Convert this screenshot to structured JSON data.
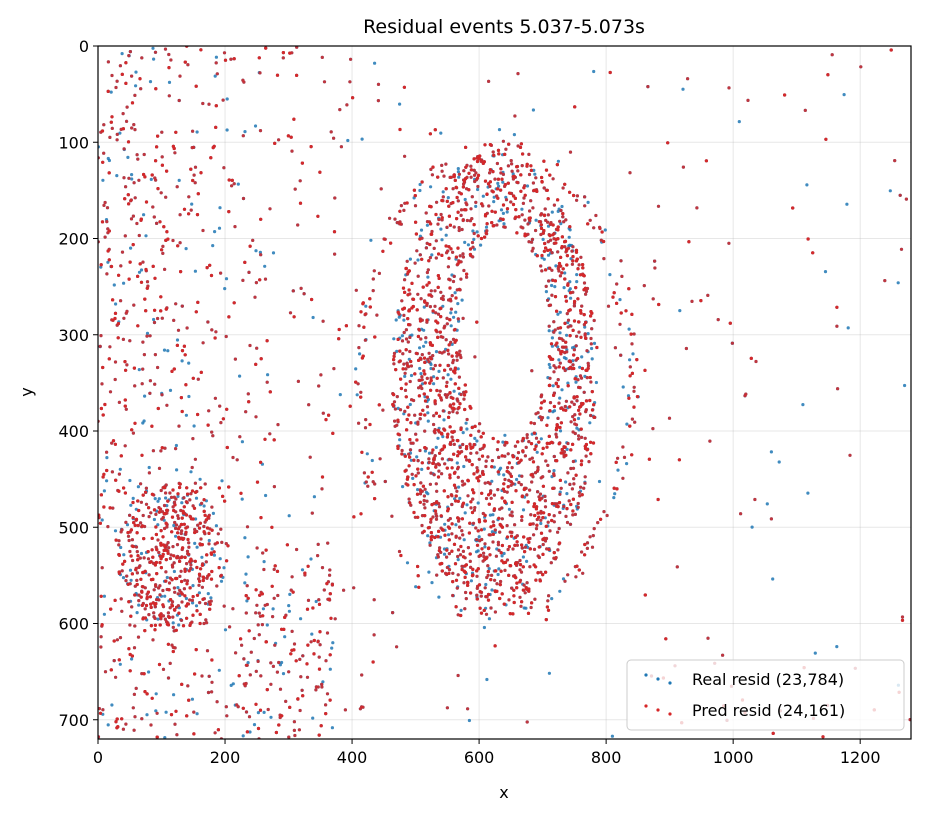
{
  "chart_data": {
    "type": "scatter",
    "title": "Residual events 5.037-5.073s",
    "xlabel": "x",
    "ylabel": "y",
    "xlim": [
      0,
      1280
    ],
    "ylim": [
      720,
      0
    ],
    "y_inverted": true,
    "x_ticks": [
      0,
      200,
      400,
      600,
      800,
      1000,
      1200
    ],
    "y_ticks": [
      0,
      100,
      200,
      300,
      400,
      500,
      600,
      700
    ],
    "grid": true,
    "legend_position": "lower-right",
    "series": [
      {
        "name": "Real resid (23,784)",
        "color": "#1f77b4",
        "count": 23784
      },
      {
        "name": "Pred resid (24,161)",
        "color": "#d62728",
        "count": 24161
      }
    ],
    "regions": {
      "outer_ring": {
        "center": [
          625,
          350
        ],
        "radii": [
          215,
          240
        ]
      },
      "head": {
        "center": [
          625,
          345
        ],
        "radii": [
          162,
          235
        ]
      },
      "hole": {
        "center": [
          640,
          300
        ],
        "radii": [
          70,
          110
        ]
      },
      "left_blob": {
        "center": [
          115,
          530
        ],
        "radii": [
          85,
          80
        ]
      }
    }
  }
}
